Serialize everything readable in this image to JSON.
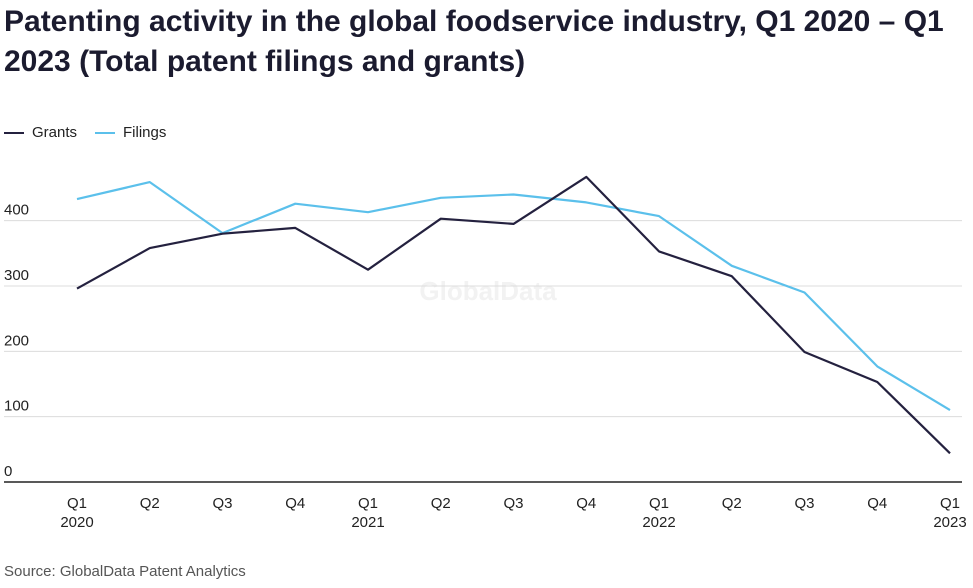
{
  "title": "Patenting activity in the global foodservice industry, Q1 2020 – Q1 2023 (Total patent filings and grants)",
  "source": "Source: GlobalData Patent Analytics",
  "watermark": "GlobalData",
  "colors": {
    "grants": "#24213f",
    "filings": "#5bc0eb",
    "grid": "#dcdcdc",
    "axis": "#222222"
  },
  "chart_data": {
    "type": "line",
    "categories": [
      [
        "Q1",
        "2020"
      ],
      [
        "Q2",
        ""
      ],
      [
        "Q3",
        ""
      ],
      [
        "Q4",
        ""
      ],
      [
        "Q1",
        "2021"
      ],
      [
        "Q2",
        ""
      ],
      [
        "Q3",
        ""
      ],
      [
        "Q4",
        ""
      ],
      [
        "Q1",
        "2022"
      ],
      [
        "Q2",
        ""
      ],
      [
        "Q3",
        ""
      ],
      [
        "Q4",
        ""
      ],
      [
        "Q1",
        "2023"
      ]
    ],
    "series": [
      {
        "name": "Grants",
        "values": [
          296,
          358,
          380,
          389,
          325,
          403,
          395,
          467,
          353,
          315,
          199,
          153,
          44
        ]
      },
      {
        "name": "Filings",
        "values": [
          433,
          459,
          381,
          426,
          413,
          435,
          440,
          428,
          407,
          331,
          290,
          177,
          110
        ]
      }
    ],
    "yticks": [
      0,
      100,
      200,
      300,
      400
    ],
    "ylim": [
      0,
      480
    ],
    "legend_position": "top-left",
    "grid": true
  }
}
